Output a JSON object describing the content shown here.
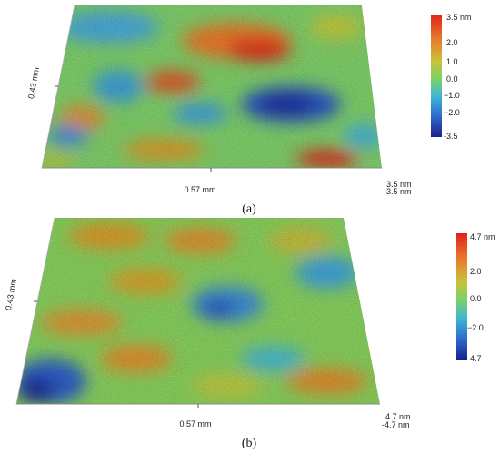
{
  "panel_a": {
    "side_label": "0.43 mm",
    "bottom_label": "0.57 mm",
    "corner_top": "3.5 nm",
    "corner_bottom": "-3.5 nm",
    "colorbar_ticks": [
      "3.5 nm",
      "2.0",
      "1.0",
      "0.0",
      "−1.0",
      "−2.0",
      "-3.5"
    ],
    "caption": "(a)"
  },
  "panel_b": {
    "side_label": "0.43 mm",
    "bottom_label": "0.57 mm",
    "corner_top": "4.7 nm",
    "corner_bottom": "-4.7 nm",
    "colorbar_ticks": [
      "4.7 nm",
      "2.0",
      "0.0",
      "−2.0",
      "-4.7"
    ],
    "caption": "(b)"
  },
  "colors": {
    "high": "#e0231c",
    "mid_high": "#d99a2a",
    "mid": "#8ccf55",
    "mid_low": "#3aa8d8",
    "low": "#1d2e9e"
  }
}
